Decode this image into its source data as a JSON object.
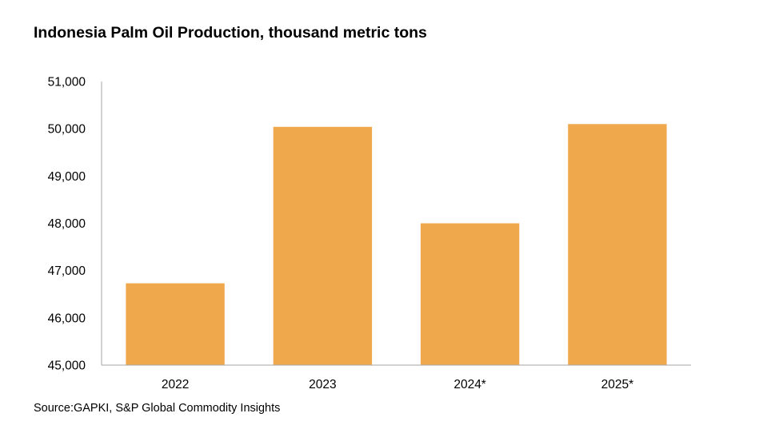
{
  "chart_data": {
    "type": "bar",
    "title": "Indonesia Palm Oil Production, thousand metric tons",
    "source": "Source:GAPKI, S&P Global Commodity Insights",
    "categories": [
      "2022",
      "2023",
      "2024*",
      "2025*"
    ],
    "values": [
      46730,
      50040,
      48000,
      50100
    ],
    "xlabel": "",
    "ylabel": "",
    "ylim": [
      45000,
      51000
    ],
    "yticks": [
      45000,
      46000,
      47000,
      48000,
      49000,
      50000,
      51000
    ],
    "ytick_labels": [
      "45,000",
      "46,000",
      "47,000",
      "48,000",
      "49,000",
      "50,000",
      "51,000"
    ],
    "grid": false,
    "legend": "none",
    "bar_color": "#F0A84C",
    "axis_color": "#A6A6A6"
  }
}
